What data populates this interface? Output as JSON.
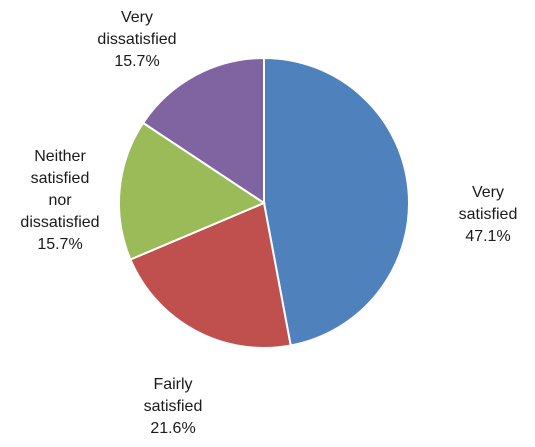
{
  "chart_data": {
    "type": "pie",
    "start_angle_deg": 0,
    "direction": "clockwise",
    "slices": [
      {
        "label_lines": [
          "Very",
          "satisfied"
        ],
        "value": 47.1,
        "value_label": "47.1%",
        "color": "#4F81BD"
      },
      {
        "label_lines": [
          "Fairly",
          "satisfied"
        ],
        "value": 21.6,
        "value_label": "21.6%",
        "color": "#C0504D"
      },
      {
        "label_lines": [
          "Neither",
          "satisfied",
          "nor",
          "dissatisfied"
        ],
        "value": 15.7,
        "value_label": "15.7%",
        "color": "#9BBB59"
      },
      {
        "label_lines": [
          "Very",
          "dissatisfied"
        ],
        "value": 15.7,
        "value_label": "15.7%",
        "color": "#8064A2"
      }
    ]
  }
}
